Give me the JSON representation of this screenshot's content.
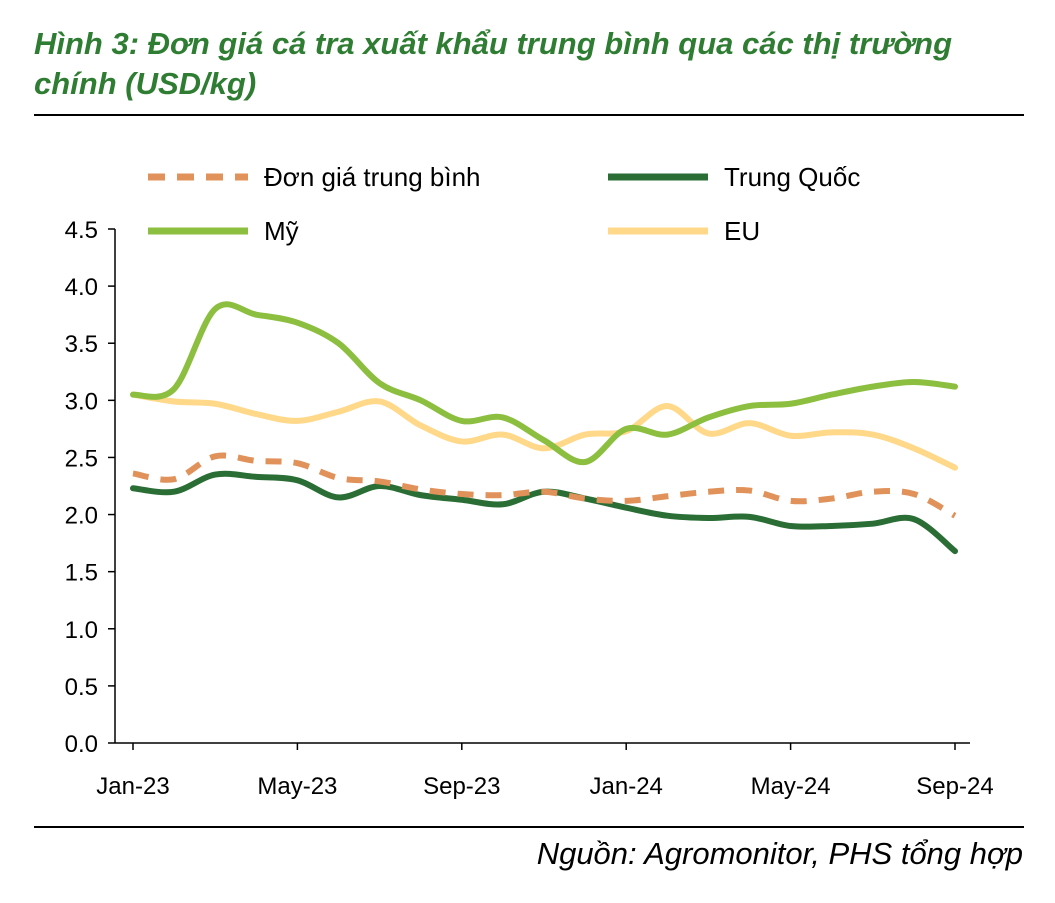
{
  "title": "Hình 3: Đơn giá cá tra xuất khẩu trung bình qua các thị trường chính (USD/kg)",
  "source": "Nguồn: Agromonitor, PHS tổng hợp",
  "chart_data": {
    "type": "line",
    "x": [
      "Jan-23",
      "Feb-23",
      "Mar-23",
      "Apr-23",
      "May-23",
      "Jun-23",
      "Jul-23",
      "Aug-23",
      "Sep-23",
      "Oct-23",
      "Nov-23",
      "Dec-23",
      "Jan-24",
      "Feb-24",
      "Mar-24",
      "Apr-24",
      "May-24",
      "Jun-24",
      "Jul-24",
      "Aug-24",
      "Sep-24"
    ],
    "x_tick_labels": [
      "Jan-23",
      "May-23",
      "Sep-23",
      "Jan-24",
      "May-24",
      "Sep-24"
    ],
    "y_tick_labels": [
      "0.0",
      "0.5",
      "1.0",
      "1.5",
      "2.0",
      "2.5",
      "3.0",
      "3.5",
      "4.0",
      "4.5"
    ],
    "ylim": [
      0,
      4.5
    ],
    "legend_placement": "top",
    "grid": false,
    "series": [
      {
        "name": "Đơn giá trung bình",
        "color": "#e0925a",
        "dash": true,
        "values": [
          2.36,
          2.31,
          2.51,
          2.47,
          2.45,
          2.32,
          2.29,
          2.22,
          2.18,
          2.17,
          2.2,
          2.14,
          2.12,
          2.16,
          2.2,
          2.21,
          2.12,
          2.14,
          2.2,
          2.18,
          1.99
        ]
      },
      {
        "name": "Trung Quốc",
        "color": "#2a6e36",
        "dash": false,
        "values": [
          2.23,
          2.2,
          2.35,
          2.33,
          2.3,
          2.15,
          2.25,
          2.17,
          2.13,
          2.09,
          2.2,
          2.14,
          2.06,
          1.99,
          1.97,
          1.98,
          1.9,
          1.9,
          1.92,
          1.96,
          1.68
        ]
      },
      {
        "name": "Mỹ",
        "color": "#8cbf3f",
        "dash": false,
        "values": [
          3.05,
          3.1,
          3.8,
          3.75,
          3.68,
          3.5,
          3.15,
          3.0,
          2.82,
          2.85,
          2.65,
          2.46,
          2.75,
          2.7,
          2.85,
          2.95,
          2.97,
          3.05,
          3.12,
          3.16,
          3.12
        ]
      },
      {
        "name": "EU",
        "color": "#ffd88a",
        "dash": false,
        "values": [
          3.05,
          2.99,
          2.97,
          2.88,
          2.82,
          2.9,
          2.99,
          2.78,
          2.64,
          2.7,
          2.58,
          2.7,
          2.73,
          2.95,
          2.71,
          2.8,
          2.69,
          2.72,
          2.7,
          2.58,
          2.41
        ]
      }
    ]
  }
}
